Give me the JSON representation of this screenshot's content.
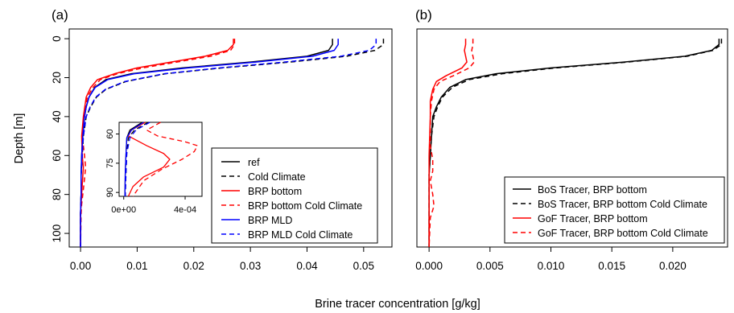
{
  "figure": {
    "xlabel": "Brine tracer concentration [g/kg]",
    "ylabel": "Depth [m]"
  },
  "chart_data": [
    {
      "type": "line",
      "panel_label": "(a)",
      "xlim": [
        -0.002,
        0.055
      ],
      "ylim": [
        107,
        -5
      ],
      "xticks": [
        0.0,
        0.01,
        0.02,
        0.03,
        0.04,
        0.05
      ],
      "xtick_labels": [
        "0.00",
        "0.01",
        "0.02",
        "0.03",
        "0.04",
        "0.05"
      ],
      "yticks": [
        0,
        20,
        40,
        60,
        80,
        100
      ],
      "ytick_labels": [
        "0",
        "20",
        "40",
        "60",
        "80",
        "100"
      ],
      "legend_position": "bottom-right",
      "series": [
        {
          "name": "ref",
          "color": "#000000",
          "dash": "solid",
          "points": [
            [
              0.0445,
              0
            ],
            [
              0.0445,
              3
            ],
            [
              0.0438,
              6
            ],
            [
              0.04,
              9
            ],
            [
              0.03,
              12
            ],
            [
              0.018,
              15
            ],
            [
              0.009,
              18
            ],
            [
              0.0045,
              21
            ],
            [
              0.0025,
              25
            ],
            [
              0.0015,
              30
            ],
            [
              0.001,
              35
            ],
            [
              0.0007,
              40
            ],
            [
              0.0004,
              50
            ],
            [
              0.0002,
              60
            ],
            [
              0.0001,
              70
            ],
            [
              0.0001,
              80
            ],
            [
              0.0,
              90
            ],
            [
              0.0,
              107
            ]
          ]
        },
        {
          "name": "Cold Climate",
          "color": "#000000",
          "dash": "dashed",
          "points": [
            [
              0.0535,
              0
            ],
            [
              0.0535,
              3
            ],
            [
              0.052,
              6
            ],
            [
              0.047,
              9
            ],
            [
              0.037,
              12
            ],
            [
              0.025,
              15
            ],
            [
              0.015,
              18
            ],
            [
              0.008,
              22
            ],
            [
              0.0045,
              26
            ],
            [
              0.0028,
              30
            ],
            [
              0.0018,
              35
            ],
            [
              0.001,
              40
            ],
            [
              0.0005,
              50
            ],
            [
              0.0003,
              60
            ],
            [
              0.0001,
              70
            ],
            [
              0.0001,
              80
            ],
            [
              0.0,
              90
            ],
            [
              0.0,
              107
            ]
          ]
        },
        {
          "name": "BRP bottom",
          "color": "#ff0000",
          "dash": "solid",
          "points": [
            [
              0.027,
              0
            ],
            [
              0.027,
              3
            ],
            [
              0.026,
              6
            ],
            [
              0.022,
              9
            ],
            [
              0.016,
              12
            ],
            [
              0.01,
              15
            ],
            [
              0.006,
              18
            ],
            [
              0.003,
              21
            ],
            [
              0.0018,
              25
            ],
            [
              0.001,
              30
            ],
            [
              0.0005,
              40
            ],
            [
              0.0002,
              50
            ],
            [
              0.0003,
              60
            ],
            [
              0.0005,
              66
            ],
            [
              0.0003,
              75
            ],
            [
              0.0001,
              85
            ],
            [
              0.0,
              90
            ],
            [
              0.0,
              107
            ]
          ]
        },
        {
          "name": "BRP bottom Cold Climate",
          "color": "#ff0000",
          "dash": "dashed",
          "points": [
            [
              0.0272,
              0
            ],
            [
              0.0272,
              3
            ],
            [
              0.0265,
              6
            ],
            [
              0.023,
              9
            ],
            [
              0.017,
              12
            ],
            [
              0.011,
              15
            ],
            [
              0.0065,
              18
            ],
            [
              0.0035,
              21
            ],
            [
              0.0022,
              25
            ],
            [
              0.0012,
              30
            ],
            [
              0.0006,
              40
            ],
            [
              0.0003,
              50
            ],
            [
              0.0007,
              60
            ],
            [
              0.0009,
              66
            ],
            [
              0.0007,
              72
            ],
            [
              0.0004,
              80
            ],
            [
              0.0002,
              85
            ],
            [
              0.0001,
              90
            ],
            [
              0.0,
              107
            ]
          ]
        },
        {
          "name": "BRP MLD",
          "color": "#0000ff",
          "dash": "solid",
          "points": [
            [
              0.0455,
              0
            ],
            [
              0.0455,
              3
            ],
            [
              0.0448,
              6
            ],
            [
              0.041,
              9
            ],
            [
              0.031,
              12
            ],
            [
              0.019,
              15
            ],
            [
              0.0095,
              18
            ],
            [
              0.0048,
              21
            ],
            [
              0.0026,
              25
            ],
            [
              0.0015,
              30
            ],
            [
              0.001,
              35
            ],
            [
              0.0007,
              40
            ],
            [
              0.0004,
              50
            ],
            [
              0.0002,
              60
            ],
            [
              0.0001,
              70
            ],
            [
              0.0001,
              80
            ],
            [
              0.0,
              90
            ],
            [
              0.0,
              107
            ]
          ]
        },
        {
          "name": "BRP MLD Cold Climate",
          "color": "#0000ff",
          "dash": "dashed",
          "points": [
            [
              0.0522,
              0
            ],
            [
              0.0522,
              3
            ],
            [
              0.051,
              6
            ],
            [
              0.046,
              9
            ],
            [
              0.036,
              12
            ],
            [
              0.0245,
              15
            ],
            [
              0.0148,
              18
            ],
            [
              0.0078,
              22
            ],
            [
              0.0044,
              26
            ],
            [
              0.0027,
              30
            ],
            [
              0.0017,
              35
            ],
            [
              0.001,
              40
            ],
            [
              0.0005,
              50
            ],
            [
              0.0003,
              60
            ],
            [
              0.0001,
              70
            ],
            [
              0.0001,
              80
            ],
            [
              0.0,
              90
            ],
            [
              0.0,
              107
            ]
          ]
        }
      ],
      "inset": {
        "xlim": [
          -3e-05,
          0.00051
        ],
        "ylim": [
          92,
          54
        ],
        "xticks": [
          0.0,
          0.0004
        ],
        "xtick_labels": [
          "0e+00",
          "4e-04"
        ],
        "yticks": [
          60,
          75,
          90
        ],
        "ytick_labels": [
          "60",
          "75",
          "90"
        ],
        "series": [
          {
            "color": "#000000",
            "dash": "solid",
            "points": [
              [
                0.00012,
                54
              ],
              [
                4e-05,
                58
              ],
              [
                2e-05,
                62
              ],
              [
                1.5e-05,
                70
              ],
              [
                1e-05,
                80
              ],
              [
                8e-06,
                92
              ]
            ]
          },
          {
            "color": "#000000",
            "dash": "dashed",
            "points": [
              [
                0.00016,
                54
              ],
              [
                7e-05,
                58
              ],
              [
                3e-05,
                62
              ],
              [
                2e-05,
                70
              ],
              [
                1.5e-05,
                80
              ],
              [
                1e-05,
                92
              ]
            ]
          },
          {
            "color": "#ff0000",
            "dash": "solid",
            "points": [
              [
                0.00014,
                54
              ],
              [
                5e-05,
                58
              ],
              [
                3e-05,
                61
              ],
              [
                0.00015,
                66
              ],
              [
                0.00026,
                70
              ],
              [
                0.0003,
                73
              ],
              [
                0.00026,
                77
              ],
              [
                0.00013,
                82
              ],
              [
                6e-05,
                87
              ],
              [
                3e-05,
                92
              ]
            ]
          },
          {
            "color": "#ff0000",
            "dash": "dashed",
            "points": [
              [
                0.00024,
                54
              ],
              [
                0.00015,
                58
              ],
              [
                0.00022,
                61
              ],
              [
                0.0004,
                64
              ],
              [
                0.00048,
                66
              ],
              [
                0.00046,
                69
              ],
              [
                0.00038,
                73
              ],
              [
                0.00025,
                78
              ],
              [
                0.00013,
                84
              ],
              [
                6e-05,
                92
              ]
            ]
          },
          {
            "color": "#0000ff",
            "dash": "solid",
            "points": [
              [
                0.00013,
                54
              ],
              [
                5e-05,
                58
              ],
              [
                2e-05,
                62
              ],
              [
                1.5e-05,
                70
              ],
              [
                1e-05,
                80
              ],
              [
                8e-06,
                92
              ]
            ]
          },
          {
            "color": "#0000ff",
            "dash": "dashed",
            "points": [
              [
                0.00017,
                54
              ],
              [
                8e-05,
                58
              ],
              [
                4e-05,
                62
              ],
              [
                2e-05,
                70
              ],
              [
                1.5e-05,
                80
              ],
              [
                1e-05,
                92
              ]
            ]
          }
        ]
      }
    },
    {
      "type": "line",
      "panel_label": "(b)",
      "xlim": [
        -0.001,
        0.0245
      ],
      "ylim": [
        107,
        -5
      ],
      "xticks": [
        0.0,
        0.005,
        0.01,
        0.015,
        0.02
      ],
      "xtick_labels": [
        "0.000",
        "0.005",
        "0.010",
        "0.015",
        "0.020"
      ],
      "yticks": [
        0,
        20,
        40,
        60,
        80,
        100
      ],
      "legend_position": "bottom-right",
      "series": [
        {
          "name": "BoS Tracer, BRP bottom",
          "color": "#000000",
          "dash": "solid",
          "points": [
            [
              0.0238,
              0
            ],
            [
              0.0238,
              3
            ],
            [
              0.0232,
              6
            ],
            [
              0.021,
              9
            ],
            [
              0.016,
              12
            ],
            [
              0.01,
              15
            ],
            [
              0.0055,
              18
            ],
            [
              0.003,
              21
            ],
            [
              0.0017,
              25
            ],
            [
              0.001,
              30
            ],
            [
              0.0006,
              35
            ],
            [
              0.0003,
              40
            ],
            [
              0.0002,
              50
            ],
            [
              0.0001,
              60
            ],
            [
              0.0,
              70
            ],
            [
              0.0,
              107
            ]
          ]
        },
        {
          "name": "BoS Tracer, BRP bottom Cold Climate",
          "color": "#000000",
          "dash": "dashed",
          "points": [
            [
              0.024,
              0
            ],
            [
              0.024,
              3
            ],
            [
              0.0233,
              6
            ],
            [
              0.0212,
              9
            ],
            [
              0.0163,
              12
            ],
            [
              0.0104,
              15
            ],
            [
              0.006,
              18
            ],
            [
              0.0033,
              21
            ],
            [
              0.0019,
              25
            ],
            [
              0.0011,
              30
            ],
            [
              0.0007,
              35
            ],
            [
              0.0004,
              40
            ],
            [
              0.0002,
              50
            ],
            [
              0.0001,
              60
            ],
            [
              0.0,
              70
            ],
            [
              0.0,
              107
            ]
          ]
        },
        {
          "name": "GoF Tracer, BRP bottom",
          "color": "#ff0000",
          "dash": "solid",
          "points": [
            [
              0.003,
              0
            ],
            [
              0.003,
              3
            ],
            [
              0.0029,
              6
            ],
            [
              0.003,
              9
            ],
            [
              0.0031,
              12
            ],
            [
              0.0027,
              15
            ],
            [
              0.0014,
              19
            ],
            [
              0.0006,
              22
            ],
            [
              0.0003,
              26
            ],
            [
              0.0001,
              32
            ],
            [
              0.0001,
              40
            ],
            [
              0.0,
              60
            ],
            [
              0.0,
              107
            ]
          ]
        },
        {
          "name": "GoF Tracer, BRP bottom Cold Climate",
          "color": "#ff0000",
          "dash": "dashed",
          "points": [
            [
              0.0036,
              0
            ],
            [
              0.0036,
              3
            ],
            [
              0.0035,
              6
            ],
            [
              0.0036,
              9
            ],
            [
              0.0037,
              12
            ],
            [
              0.0033,
              15
            ],
            [
              0.002,
              19
            ],
            [
              0.0009,
              22
            ],
            [
              0.0004,
              26
            ],
            [
              0.0002,
              32
            ],
            [
              0.0001,
              40
            ],
            [
              0.0001,
              55
            ],
            [
              0.0003,
              62
            ],
            [
              0.0003,
              68
            ],
            [
              0.0001,
              73
            ],
            [
              0.0003,
              80
            ],
            [
              0.0004,
              86
            ],
            [
              0.0001,
              92
            ],
            [
              0.0,
              107
            ]
          ]
        }
      ]
    }
  ]
}
